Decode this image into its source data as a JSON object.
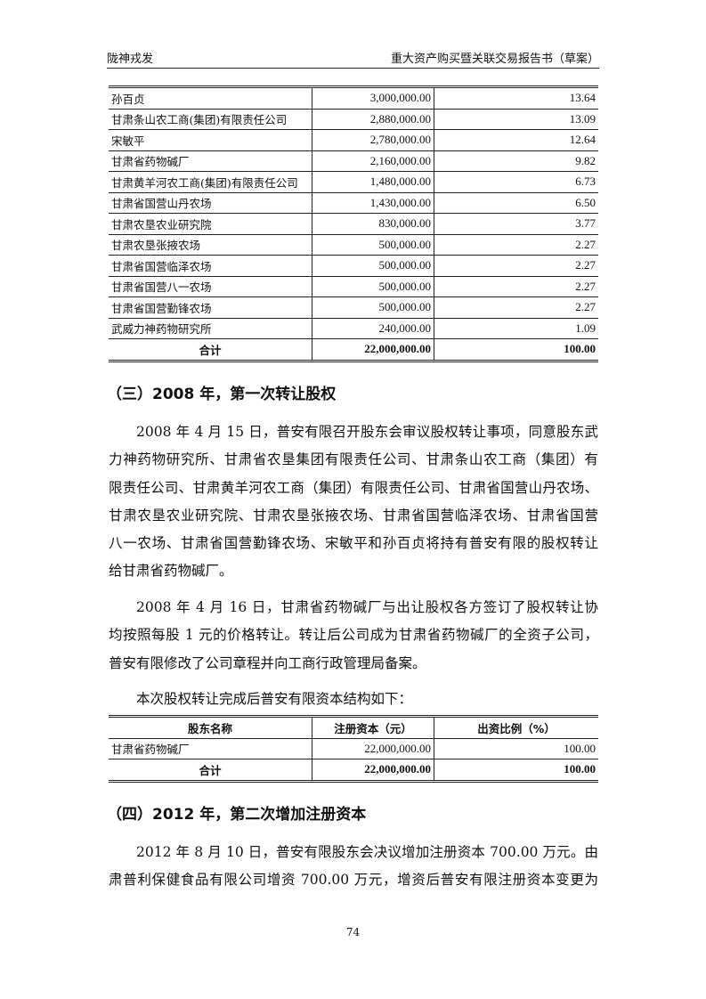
{
  "header": {
    "left": "陇神戎发",
    "right": "重大资产购买暨关联交易报告书（草案）"
  },
  "table1": {
    "rows": [
      [
        "孙百贞",
        "3,000,000.00",
        "13.64"
      ],
      [
        "甘肃条山农工商(集团)有限责任公司",
        "2,880,000.00",
        "13.09"
      ],
      [
        "宋敏平",
        "2,780,000.00",
        "12.64"
      ],
      [
        "甘肃省药物碱厂",
        "2,160,000.00",
        "9.82"
      ],
      [
        "甘肃黄羊河农工商(集团)有限责任公司",
        "1,480,000.00",
        "6.73"
      ],
      [
        "甘肃省国营山丹农场",
        "1,430,000.00",
        "6.50"
      ],
      [
        "甘肃农垦农业研究院",
        "830,000.00",
        "3.77"
      ],
      [
        "甘肃农垦张掖农场",
        "500,000.00",
        "2.27"
      ],
      [
        "甘肃省国营临泽农场",
        "500,000.00",
        "2.27"
      ],
      [
        "甘肃省国营八一农场",
        "500,000.00",
        "2.27"
      ],
      [
        "甘肃省国营勤锋农场",
        "500,000.00",
        "2.27"
      ],
      [
        "武威力神药物研究所",
        "240,000.00",
        "1.09"
      ]
    ],
    "total": [
      "合计",
      "22,000,000.00",
      "100.00"
    ]
  },
  "section3": {
    "title": "（三）2008 年，第一次转让股权",
    "para1": [
      "2008 年 4 月 15 日，普安有限召开股东会审议股权转让事项，同意股东武威",
      "力神药物研究所、甘肃省农垦集团有限责任公司、甘肃条山农工商（集团）有",
      "限责任公司、甘肃黄羊河农工商（集团）有限责任公司、甘肃省国营山丹农场、",
      "甘肃农垦农业研究院、甘肃农垦张掖农场、甘肃省国营临泽农场、甘肃省国营",
      "八一农场、甘肃省国营勤锋农场、宋敏平和孙百贞将持有普安有限的股权转让",
      "给甘肃省药物碱厂。"
    ],
    "para2": [
      "2008 年 4 月 16 日，甘肃省药物碱厂与出让股权各方签订了股权转让协议，",
      "均按照每股 1 元的价格转让。转让后公司成为甘肃省药物碱厂的全资子公司，",
      "普安有限修改了公司章程并向工商行政管理局备案。"
    ],
    "para3": [
      "本次股权转让完成后普安有限资本结构如下："
    ]
  },
  "table2": {
    "headers": [
      "股东名称",
      "注册资本（元）",
      "出资比例（%）"
    ],
    "rows": [
      [
        "甘肃省药物碱厂",
        "22,000,000.00",
        "100.00"
      ]
    ],
    "total": [
      "合计",
      "22,000,000.00",
      "100.00"
    ]
  },
  "section4": {
    "title": "（四）2012 年，第二次增加注册资本",
    "para1": [
      "2012 年 8 月 10 日，普安有限股东会决议增加注册资本 700.00 万元。由甘",
      "肃普利保健食品有限公司增资 700.00 万元，增资后普安有限注册资本变更为"
    ]
  },
  "page_number": "74"
}
